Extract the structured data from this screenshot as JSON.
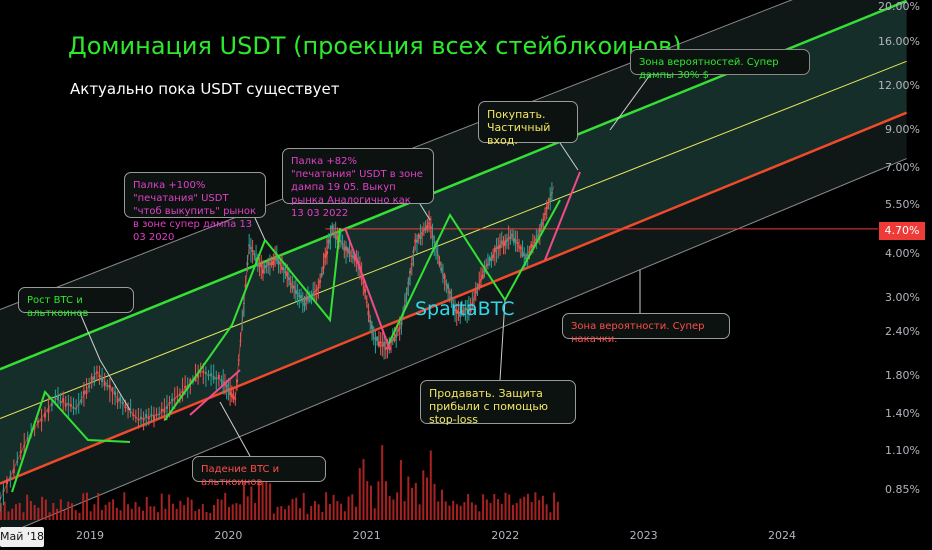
{
  "header": {
    "title": "Доминация USDT (проекция всех стейблкоинов)",
    "subtitle": "Актуально пока USDT существует"
  },
  "watermark": "SpartaBTC",
  "annotations": {
    "zone_probability_top": "Зона вероятностей. Супер дампы 30% $",
    "buy": "Покупать.\nЧастичный вход.",
    "pump_2022": "Палка +82% \"печатания\" USDT в зоне дампа 19 05. Выкуп рынка Аналогично как  13 03 2022",
    "pump_2020": "Палка +100% \"печатания\" USDT \"чтоб выкупить\" рынок в зоне супер дампа 13 03 2020",
    "btc_up": "Рост BTC и альткоинов",
    "btc_down": "Падение BTC и альткоинов",
    "sell": "Продавать. Защита прибыли с помощью stop-loss",
    "zone_probability_bottom": "Зона вероятности. Супер накачки."
  },
  "colors": {
    "background": "#000000",
    "accent_green": "#2ee82e",
    "channel_upper": "#35e035",
    "channel_middle": "#e6e65a",
    "channel_lower": "#f04a2a",
    "price_level": "#ef3b38",
    "candle_up": "#26a69a",
    "candle_down": "#ef5350",
    "volume": "#c62828",
    "note_pink": "#e040c8",
    "note_yellow": "#f5e663",
    "note_red": "#ff4d4d",
    "watermark": "#33d6e6"
  },
  "chart_data": {
    "type": "line",
    "title": "Доминация USDT (проекция всех стейблкоинов)",
    "y_scale": "log",
    "y_ticks": [
      "20.00%",
      "16.00%",
      "12.00%",
      "9.00%",
      "7.00%",
      "5.50%",
      "4.00%",
      "3.00%",
      "2.40%",
      "1.80%",
      "1.40%",
      "1.10%",
      "0.85%"
    ],
    "y_tick_values": [
      20.0,
      16.0,
      12.0,
      9.0,
      7.0,
      5.5,
      4.0,
      3.0,
      2.4,
      1.8,
      1.4,
      1.1,
      0.85
    ],
    "x_ticks": [
      "2019",
      "2020",
      "2021",
      "2022",
      "2023",
      "2024"
    ],
    "x_tick_values": [
      2019.0,
      2020.0,
      2021.0,
      2022.0,
      2023.0,
      2024.0
    ],
    "xlim": [
      2018.35,
      2024.65
    ],
    "ylim": [
      0.7,
      21.0
    ],
    "current_date_label": "Май '18",
    "current_value_label": "4.70%",
    "current_value": 4.7,
    "series": [
      {
        "values_x": [
          2018.35,
          2018.55,
          2018.75,
          2018.9,
          2019.05,
          2019.2,
          2019.35,
          2019.5,
          2019.65,
          2019.8,
          2019.95,
          2020.05,
          2020.15,
          2020.25,
          2020.35,
          2020.45,
          2020.55,
          2020.65,
          2020.75,
          2020.85,
          2020.95,
          2021.05,
          2021.15,
          2021.25,
          2021.35,
          2021.45,
          2021.55,
          2021.65,
          2021.75,
          2021.85,
          2021.95,
          2022.05,
          2022.15,
          2022.25,
          2022.35
        ],
        "values_y": [
          0.8,
          1.2,
          1.55,
          1.45,
          1.85,
          1.55,
          1.35,
          1.4,
          1.6,
          1.85,
          1.75,
          1.55,
          4.2,
          3.6,
          3.9,
          3.3,
          2.9,
          3.2,
          4.7,
          4.1,
          3.7,
          2.3,
          2.15,
          2.5,
          4.3,
          4.9,
          3.5,
          2.7,
          2.8,
          3.6,
          4.2,
          4.5,
          3.9,
          4.6,
          6.2
        ]
      }
    ],
    "channel": {
      "upper_y_2018": 1.65,
      "upper_y_2024": 15.0,
      "middle_y_2018": 1.2,
      "middle_y_2024": 10.2,
      "lower_y_2018": 0.78,
      "lower_y_2024": 7.2,
      "outer_upper_y_2018": 2.45,
      "outer_upper_y_2024": 20.5,
      "outer_lower_y_2018": 0.55,
      "outer_lower_y_2024": 5.3
    },
    "grid": false
  }
}
